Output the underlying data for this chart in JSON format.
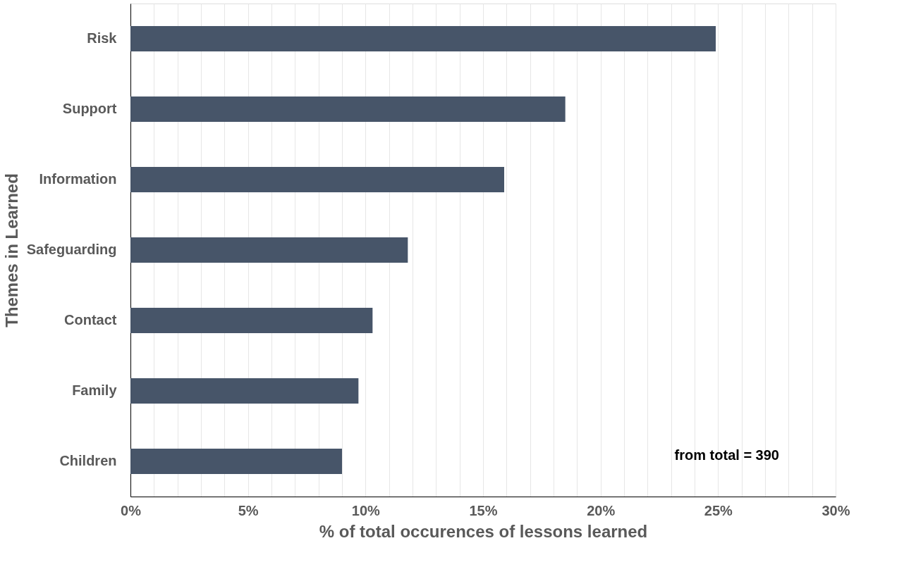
{
  "chart_data": {
    "type": "bar",
    "orientation": "horizontal",
    "xlabel": "% of total occurences of lessons learned",
    "ylabel": "Themes in Learned",
    "categories": [
      "Risk",
      "Support",
      "Information",
      "Safeguarding",
      "Contact",
      "Family",
      "Children"
    ],
    "values": [
      24.9,
      18.5,
      15.9,
      11.8,
      10.3,
      9.7,
      9.0
    ],
    "color": "#475569",
    "xlim": [
      0,
      30
    ],
    "xticks": [
      {
        "value": 0,
        "label": "0%"
      },
      {
        "value": 1,
        "label": null
      },
      {
        "value": 2,
        "label": null
      },
      {
        "value": 3,
        "label": null
      },
      {
        "value": 4,
        "label": null
      },
      {
        "value": 5,
        "label": "5%"
      },
      {
        "value": 6,
        "label": null
      },
      {
        "value": 7,
        "label": null
      },
      {
        "value": 8,
        "label": null
      },
      {
        "value": 9,
        "label": null
      },
      {
        "value": 10,
        "label": "10%"
      },
      {
        "value": 11,
        "label": null
      },
      {
        "value": 12,
        "label": null
      },
      {
        "value": 13,
        "label": null
      },
      {
        "value": 14,
        "label": null
      },
      {
        "value": 15,
        "label": "15%"
      },
      {
        "value": 16,
        "label": null
      },
      {
        "value": 17,
        "label": null
      },
      {
        "value": 18,
        "label": null
      },
      {
        "value": 19,
        "label": null
      },
      {
        "value": 20,
        "label": "20%"
      },
      {
        "value": 21,
        "label": null
      },
      {
        "value": 22,
        "label": null
      },
      {
        "value": 23,
        "label": null
      },
      {
        "value": 24,
        "label": null
      },
      {
        "value": 25,
        "label": "25%"
      },
      {
        "value": 26,
        "label": null
      },
      {
        "value": 27,
        "label": null
      },
      {
        "value": 28,
        "label": null
      },
      {
        "value": 29,
        "label": null
      },
      {
        "value": 30,
        "label": "30%"
      }
    ],
    "grid": "x",
    "annotations": [
      "from total = 390"
    ]
  }
}
